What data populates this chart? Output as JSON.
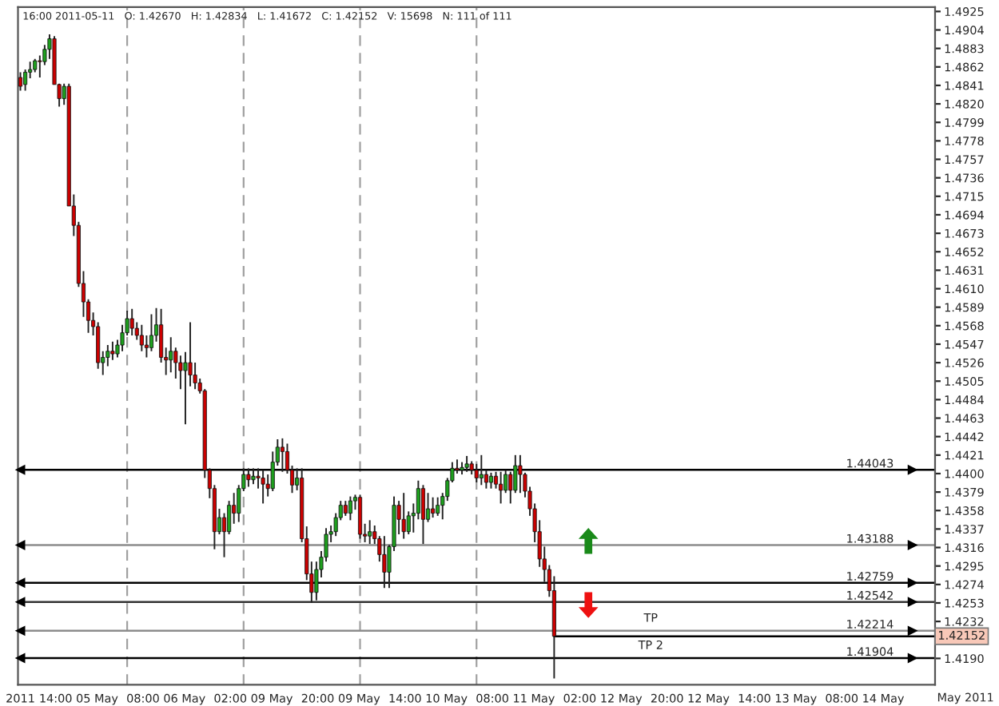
{
  "chart_data": {
    "type": "candlestick",
    "categories": [
      "2011",
      null,
      null,
      null,
      null,
      null,
      null,
      null,
      null,
      null,
      null,
      null,
      "14:00 05 May",
      null,
      null,
      null,
      null,
      null,
      null,
      null,
      null,
      null,
      null,
      null,
      null,
      null,
      null,
      null,
      null,
      null,
      "08:00 06 May",
      null,
      null,
      null,
      null,
      null,
      null,
      null,
      null,
      null,
      null,
      null,
      null,
      null,
      null,
      null,
      null,
      null,
      "02:00 09 May",
      null,
      null,
      null,
      null,
      null,
      null,
      null,
      null,
      null,
      null,
      null,
      null,
      null,
      null,
      null,
      null,
      null,
      "20:00 09 May",
      null,
      null,
      null,
      null,
      null,
      null,
      null,
      null,
      null,
      null,
      null,
      null,
      null,
      null,
      null,
      null,
      null,
      "14:00 10 May",
      null,
      null,
      null,
      null,
      null,
      null,
      null,
      null,
      null,
      null,
      null,
      null,
      null,
      null,
      null,
      null,
      null,
      "08:00 11 May",
      null,
      null,
      null,
      null,
      null,
      null,
      null,
      null,
      null,
      null,
      null,
      null,
      null,
      null,
      null,
      null,
      null,
      "02:00 12 May",
      null,
      null,
      null,
      null,
      null,
      null,
      null,
      null,
      null,
      null,
      null,
      null,
      null,
      null,
      null,
      null,
      null,
      "20:00 12 May",
      null,
      null,
      null,
      null,
      null,
      null,
      null,
      null,
      null,
      null,
      null,
      null,
      null,
      null,
      null,
      null,
      null,
      "14:00 13 May",
      null,
      null,
      null,
      null,
      null,
      null,
      null,
      null,
      null,
      null,
      null,
      null,
      null,
      null,
      null,
      null,
      null,
      "08:00 14 May",
      null,
      null,
      null,
      null,
      null,
      null,
      null,
      null,
      null,
      null,
      null,
      null,
      null,
      null
    ],
    "ohlc": [
      [
        1.485,
        1.4856,
        1.4835,
        1.484
      ],
      [
        1.4842,
        1.4859,
        1.4835,
        1.4856
      ],
      [
        1.4856,
        1.4868,
        1.4849,
        1.4859
      ],
      [
        1.4859,
        1.4871,
        1.4856,
        1.4869
      ],
      [
        1.4869,
        1.4875,
        1.485,
        1.4868
      ],
      [
        1.4868,
        1.4887,
        1.4864,
        1.4882
      ],
      [
        1.4882,
        1.4899,
        1.4871,
        1.4894
      ],
      [
        1.4894,
        1.4897,
        1.4842,
        1.4842
      ],
      [
        1.4842,
        1.4843,
        1.4817,
        1.4826
      ],
      [
        1.4826,
        1.4843,
        1.4819,
        1.484
      ],
      [
        1.484,
        1.4843,
        1.4704,
        1.4704
      ],
      [
        1.4704,
        1.4717,
        1.467,
        1.4682
      ],
      [
        1.4682,
        1.4686,
        1.4612,
        1.4616
      ],
      [
        1.4616,
        1.463,
        1.4578,
        1.4595
      ],
      [
        1.4595,
        1.4598,
        1.456,
        1.4574
      ],
      [
        1.4574,
        1.4583,
        1.4557,
        1.4567
      ],
      [
        1.4567,
        1.4572,
        1.4519,
        1.4526
      ],
      [
        1.4526,
        1.4539,
        1.4512,
        1.4532
      ],
      [
        1.4532,
        1.4546,
        1.4522,
        1.4539
      ],
      [
        1.4539,
        1.455,
        1.4529,
        1.4536
      ],
      [
        1.4536,
        1.4552,
        1.4532,
        1.4546
      ],
      [
        1.4546,
        1.4569,
        1.4539,
        1.456
      ],
      [
        1.456,
        1.4585,
        1.4557,
        1.4576
      ],
      [
        1.4576,
        1.4587,
        1.4557,
        1.4565
      ],
      [
        1.4565,
        1.4572,
        1.4552,
        1.4557
      ],
      [
        1.4557,
        1.4569,
        1.4539,
        1.4546
      ],
      [
        1.4546,
        1.4557,
        1.4532,
        1.4543
      ],
      [
        1.4543,
        1.4581,
        1.4539,
        1.4557
      ],
      [
        1.4557,
        1.4588,
        1.455,
        1.4569
      ],
      [
        1.4569,
        1.4587,
        1.4526,
        1.4532
      ],
      [
        1.4532,
        1.4543,
        1.4512,
        1.4529
      ],
      [
        1.4529,
        1.4555,
        1.4515,
        1.4539
      ],
      [
        1.4539,
        1.4543,
        1.4508,
        1.4526
      ],
      [
        1.4526,
        1.4534,
        1.4496,
        1.4517
      ],
      [
        1.4517,
        1.4538,
        1.4456,
        1.4526
      ],
      [
        1.4526,
        1.4572,
        1.4499,
        1.4512
      ],
      [
        1.4512,
        1.4526,
        1.4496,
        1.4503
      ],
      [
        1.4503,
        1.4508,
        1.4491,
        1.4494
      ],
      [
        1.4494,
        1.4496,
        1.4395,
        1.4404
      ],
      [
        1.4404,
        1.4406,
        1.4372,
        1.4383
      ],
      [
        1.4383,
        1.4387,
        1.4314,
        1.4334
      ],
      [
        1.4334,
        1.436,
        1.4331,
        1.435
      ],
      [
        1.435,
        1.4355,
        1.4305,
        1.4334
      ],
      [
        1.4334,
        1.4369,
        1.4331,
        1.4364
      ],
      [
        1.4364,
        1.4378,
        1.4343,
        1.4355
      ],
      [
        1.4355,
        1.4387,
        1.4345,
        1.4383
      ],
      [
        1.4383,
        1.4406,
        1.438,
        1.4399
      ],
      [
        1.4399,
        1.4406,
        1.4385,
        1.4393
      ],
      [
        1.4393,
        1.4406,
        1.4388,
        1.4397
      ],
      [
        1.4397,
        1.4406,
        1.4383,
        1.4395
      ],
      [
        1.4395,
        1.4404,
        1.4366,
        1.4388
      ],
      [
        1.4388,
        1.4399,
        1.4374,
        1.4383
      ],
      [
        1.4383,
        1.4425,
        1.438,
        1.4413
      ],
      [
        1.4413,
        1.4439,
        1.4409,
        1.443
      ],
      [
        1.443,
        1.444,
        1.4402,
        1.4425
      ],
      [
        1.4425,
        1.4434,
        1.44,
        1.4404
      ],
      [
        1.4404,
        1.4409,
        1.4378,
        1.4387
      ],
      [
        1.4387,
        1.4406,
        1.4381,
        1.4395
      ],
      [
        1.4395,
        1.4406,
        1.4322,
        1.4326
      ],
      [
        1.4326,
        1.434,
        1.4279,
        1.4286
      ],
      [
        1.4286,
        1.43,
        1.4253,
        1.4265
      ],
      [
        1.4265,
        1.43,
        1.4256,
        1.4291
      ],
      [
        1.4291,
        1.4312,
        1.4282,
        1.4305
      ],
      [
        1.4305,
        1.4338,
        1.43,
        1.4331
      ],
      [
        1.4331,
        1.4341,
        1.4322,
        1.4334
      ],
      [
        1.4334,
        1.4355,
        1.4329,
        1.435
      ],
      [
        1.435,
        1.4369,
        1.4347,
        1.4364
      ],
      [
        1.4364,
        1.4369,
        1.4352,
        1.4355
      ],
      [
        1.4355,
        1.4374,
        1.4347,
        1.4369
      ],
      [
        1.4369,
        1.4376,
        1.4359,
        1.4373
      ],
      [
        1.4373,
        1.4376,
        1.4326,
        1.4331
      ],
      [
        1.4331,
        1.4343,
        1.4322,
        1.4329
      ],
      [
        1.4329,
        1.4347,
        1.432,
        1.4334
      ],
      [
        1.4334,
        1.4341,
        1.432,
        1.4326
      ],
      [
        1.4326,
        1.4329,
        1.43,
        1.4308
      ],
      [
        1.4308,
        1.4329,
        1.427,
        1.4288
      ],
      [
        1.4288,
        1.4319,
        1.427,
        1.4317
      ],
      [
        1.4317,
        1.4374,
        1.4312,
        1.4364
      ],
      [
        1.4364,
        1.4369,
        1.4331,
        1.4348
      ],
      [
        1.4348,
        1.4378,
        1.4326,
        1.4334
      ],
      [
        1.4334,
        1.4357,
        1.4331,
        1.4352
      ],
      [
        1.4352,
        1.4366,
        1.4333,
        1.4355
      ],
      [
        1.4355,
        1.4392,
        1.4348,
        1.4383
      ],
      [
        1.4383,
        1.4387,
        1.432,
        1.4348
      ],
      [
        1.4348,
        1.4378,
        1.4345,
        1.436
      ],
      [
        1.436,
        1.4373,
        1.435,
        1.4355
      ],
      [
        1.4355,
        1.4373,
        1.4352,
        1.4364
      ],
      [
        1.4364,
        1.4378,
        1.4348,
        1.4374
      ],
      [
        1.4374,
        1.4395,
        1.4369,
        1.4392
      ],
      [
        1.4392,
        1.4413,
        1.439,
        1.4406
      ],
      [
        1.4406,
        1.4416,
        1.44,
        1.4404
      ],
      [
        1.4404,
        1.4413,
        1.4399,
        1.4407
      ],
      [
        1.4407,
        1.442,
        1.4402,
        1.4411
      ],
      [
        1.4411,
        1.4414,
        1.4399,
        1.4404
      ],
      [
        1.4404,
        1.4411,
        1.439,
        1.4395
      ],
      [
        1.4395,
        1.4421,
        1.4387,
        1.4399
      ],
      [
        1.4399,
        1.4404,
        1.4383,
        1.439
      ],
      [
        1.439,
        1.4401,
        1.4383,
        1.4397
      ],
      [
        1.4397,
        1.4402,
        1.4383,
        1.4388
      ],
      [
        1.4388,
        1.4402,
        1.4366,
        1.4381
      ],
      [
        1.4381,
        1.4404,
        1.4378,
        1.4399
      ],
      [
        1.4399,
        1.4402,
        1.4366,
        1.4381
      ],
      [
        1.4381,
        1.4421,
        1.4378,
        1.4409
      ],
      [
        1.4409,
        1.4421,
        1.4378,
        1.4399
      ],
      [
        1.4399,
        1.4401,
        1.4373,
        1.438
      ],
      [
        1.438,
        1.4385,
        1.4352,
        1.436
      ],
      [
        1.436,
        1.4366,
        1.4322,
        1.4334
      ],
      [
        1.4334,
        1.4347,
        1.4294,
        1.4303
      ],
      [
        1.4303,
        1.4317,
        1.4277,
        1.4291
      ],
      [
        1.4291,
        1.4296,
        1.426,
        1.4267
      ],
      [
        1.4267,
        1.42834,
        1.41672,
        1.42152
      ],
      null,
      null,
      null,
      null,
      null,
      null,
      null,
      null,
      null,
      null,
      null,
      null,
      null,
      null,
      null,
      null,
      null,
      null,
      null,
      null,
      null,
      null,
      null,
      null,
      null,
      null,
      null,
      null,
      null,
      null,
      null,
      null,
      null,
      null,
      null,
      null,
      null,
      null,
      null,
      null,
      null,
      null,
      null,
      null,
      null,
      null,
      null,
      null,
      null,
      null,
      null,
      null,
      null,
      null,
      null,
      null,
      null,
      null,
      null,
      null,
      null,
      null,
      null,
      null,
      null,
      null,
      null,
      null,
      null,
      null,
      null,
      null,
      null,
      null,
      null,
      null,
      null,
      null
    ],
    "ylim": [
      1.416,
      1.493
    ],
    "yticks": [
      {
        "value": 1.419,
        "label": "1.4190"
      },
      1.4232,
      1.4253,
      1.4274,
      1.4295,
      1.4316,
      1.4337,
      1.4358,
      1.4379,
      {
        "value": 1.44,
        "label": "1.4400"
      },
      1.4421,
      1.4442,
      1.4463,
      1.4484,
      1.4505,
      1.4526,
      1.4547,
      1.4568,
      1.4589,
      {
        "value": 1.461,
        "label": "1.4610"
      },
      1.4631,
      1.4652,
      1.4673,
      1.4694,
      1.4715,
      1.4736,
      1.4757,
      1.4778,
      1.4799,
      {
        "value": 1.482,
        "label": "1.4820"
      },
      1.4841,
      1.4862,
      1.4883,
      1.4904,
      1.4925
    ],
    "ref_lines": [
      {
        "axis": "y",
        "value": 1.44043,
        "label": "1.44043",
        "color": "#000000"
      },
      {
        "axis": "y",
        "value": 1.43188,
        "label": "1.43188",
        "color": "#8c8c8c"
      },
      {
        "axis": "y",
        "value": 1.42759,
        "label": "1.42759",
        "color": "#000000"
      },
      {
        "axis": "y",
        "value": 1.42542,
        "label": "1.42542",
        "color": "#333333"
      },
      {
        "axis": "y",
        "value": 1.42214,
        "label": "1.42214",
        "color": "#8c8c8c"
      },
      {
        "axis": "y",
        "value": 1.41904,
        "label": "1.41904",
        "color": "#000000"
      },
      {
        "axis": "y",
        "value": 1.42152,
        "label": "1.42152",
        "color": "#000000"
      }
    ],
    "annotations": [
      "16:00 2011-05-11   O: 1.42670   H: 1.42834   L: 1.41672   C: 1.42152   V: 15698   N: 111 of 111",
      {
        "text": "TP",
        "y": 1.42214
      },
      {
        "text": "TP 2",
        "y": 1.41904
      },
      "May 2011"
    ],
    "grid": false
  }
}
